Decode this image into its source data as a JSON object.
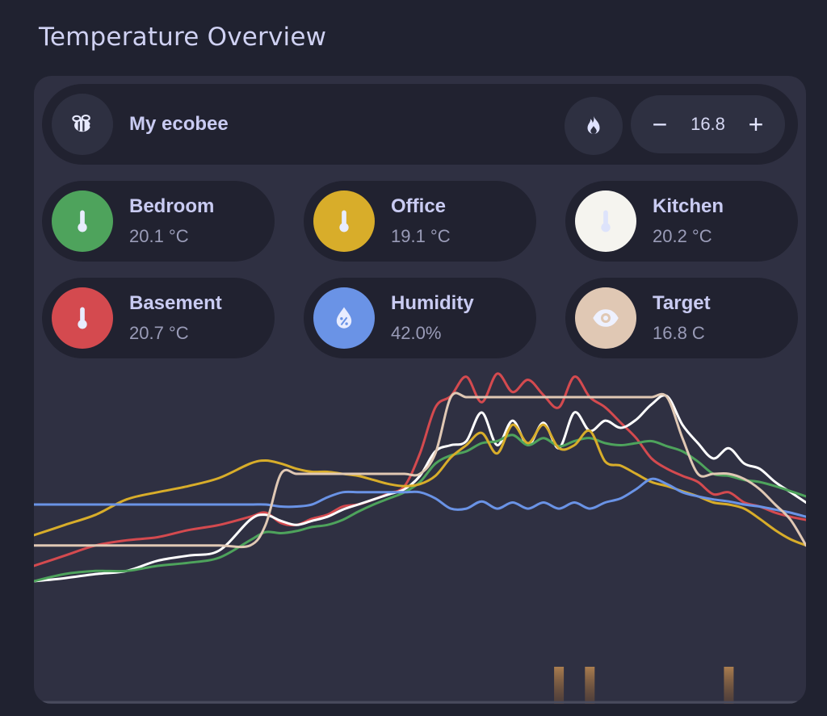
{
  "page_title": "Temperature Overview",
  "thermostat": {
    "name": "My ecobee",
    "icon": "bee-icon",
    "mode_icon": "fire-icon",
    "setpoint": "16.8",
    "minus_label": "−",
    "plus_label": "+"
  },
  "tiles": [
    {
      "name": "Bedroom",
      "value": "20.1 °C",
      "icon": "thermometer-icon",
      "color": "#4ea35c"
    },
    {
      "name": "Office",
      "value": "19.1 °C",
      "icon": "thermometer-icon",
      "color": "#d8ad2a"
    },
    {
      "name": "Kitchen",
      "value": "20.2 °C",
      "icon": "thermometer-icon",
      "color": "#f5f4ef"
    },
    {
      "name": "Basement",
      "value": "20.7 °C",
      "icon": "thermometer-icon",
      "color": "#d44a4f"
    },
    {
      "name": "Humidity",
      "value": "42.0%",
      "icon": "water-percent-icon",
      "color": "#6a93e6"
    },
    {
      "name": "Target",
      "value": "16.8 C",
      "icon": "eye-icon",
      "color": "#e0c8b4"
    }
  ],
  "chart_data": {
    "type": "line",
    "x": [
      0,
      4,
      8,
      12,
      16,
      20,
      24,
      28,
      30,
      32,
      34,
      36,
      38,
      40,
      42,
      44,
      46,
      48,
      50,
      52,
      54,
      56,
      58,
      60,
      62,
      64,
      66,
      68,
      70,
      72,
      74,
      76,
      78,
      80,
      82,
      84,
      86,
      88,
      90,
      92,
      94,
      96,
      98,
      100
    ],
    "y_range": [
      45,
      375
    ],
    "series": [
      {
        "name": "Basement",
        "color": "#d44a4f",
        "values": [
          180,
          190,
          200,
          205,
          208,
          215,
          220,
          228,
          232,
          222,
          220,
          226,
          230,
          238,
          240,
          245,
          251,
          258,
          290,
          335,
          346,
          365,
          340,
          368,
          350,
          362,
          347,
          335,
          365,
          345,
          335,
          320,
          305,
          285,
          275,
          268,
          262,
          250,
          252,
          242,
          238,
          232,
          228,
          225
        ]
      },
      {
        "name": "Kitchen",
        "color": "#ffffff",
        "values": [
          165,
          168,
          172,
          175,
          185,
          190,
          195,
          225,
          230,
          224,
          220,
          224,
          228,
          235,
          240,
          245,
          250,
          255,
          268,
          292,
          298,
          302,
          330,
          298,
          322,
          298,
          320,
          295,
          330,
          312,
          322,
          315,
          323,
          338,
          346,
          318,
          300,
          285,
          295,
          280,
          275,
          262,
          252,
          242
        ]
      },
      {
        "name": "Bedroom",
        "color": "#4ea35c",
        "values": [
          165,
          172,
          175,
          175,
          180,
          183,
          188,
          205,
          213,
          212,
          214,
          218,
          220,
          225,
          233,
          240,
          246,
          252,
          262,
          280,
          288,
          292,
          300,
          302,
          308,
          298,
          305,
          297,
          302,
          305,
          300,
          298,
          300,
          302,
          297,
          292,
          282,
          270,
          268,
          264,
          262,
          258,
          253,
          248
        ]
      },
      {
        "name": "Office",
        "color": "#d8ad2a",
        "values": [
          210,
          220,
          230,
          245,
          252,
          258,
          266,
          280,
          283,
          280,
          275,
          272,
          272,
          270,
          268,
          264,
          260,
          258,
          260,
          268,
          286,
          298,
          310,
          290,
          318,
          300,
          318,
          295,
          298,
          312,
          282,
          278,
          270,
          262,
          258,
          253,
          248,
          242,
          240,
          236,
          226,
          215,
          206,
          200
        ]
      },
      {
        "name": "Humidity",
        "color": "#6a93e6",
        "values": [
          240,
          240,
          240,
          240,
          240,
          240,
          240,
          240,
          240,
          238,
          238,
          240,
          247,
          252,
          252,
          252,
          252,
          252,
          252,
          246,
          236,
          236,
          243,
          236,
          242,
          236,
          242,
          236,
          242,
          236,
          242,
          246,
          255,
          265,
          260,
          252,
          248,
          245,
          243,
          240,
          238,
          235,
          232,
          228
        ]
      },
      {
        "name": "Target",
        "color": "#e0c8b4",
        "values": [
          200,
          200,
          200,
          200,
          200,
          200,
          200,
          200,
          220,
          270,
          270,
          270,
          270,
          270,
          270,
          270,
          270,
          270,
          270,
          290,
          345,
          345,
          345,
          345,
          345,
          345,
          345,
          345,
          345,
          345,
          345,
          345,
          345,
          345,
          345,
          305,
          270,
          270,
          270,
          265,
          255,
          240,
          225,
          200
        ]
      }
    ],
    "bars": [
      {
        "x": 68,
        "value": 1
      },
      {
        "x": 72,
        "value": 1
      },
      {
        "x": 90,
        "value": 1
      }
    ],
    "grid": false,
    "legend": "none"
  }
}
